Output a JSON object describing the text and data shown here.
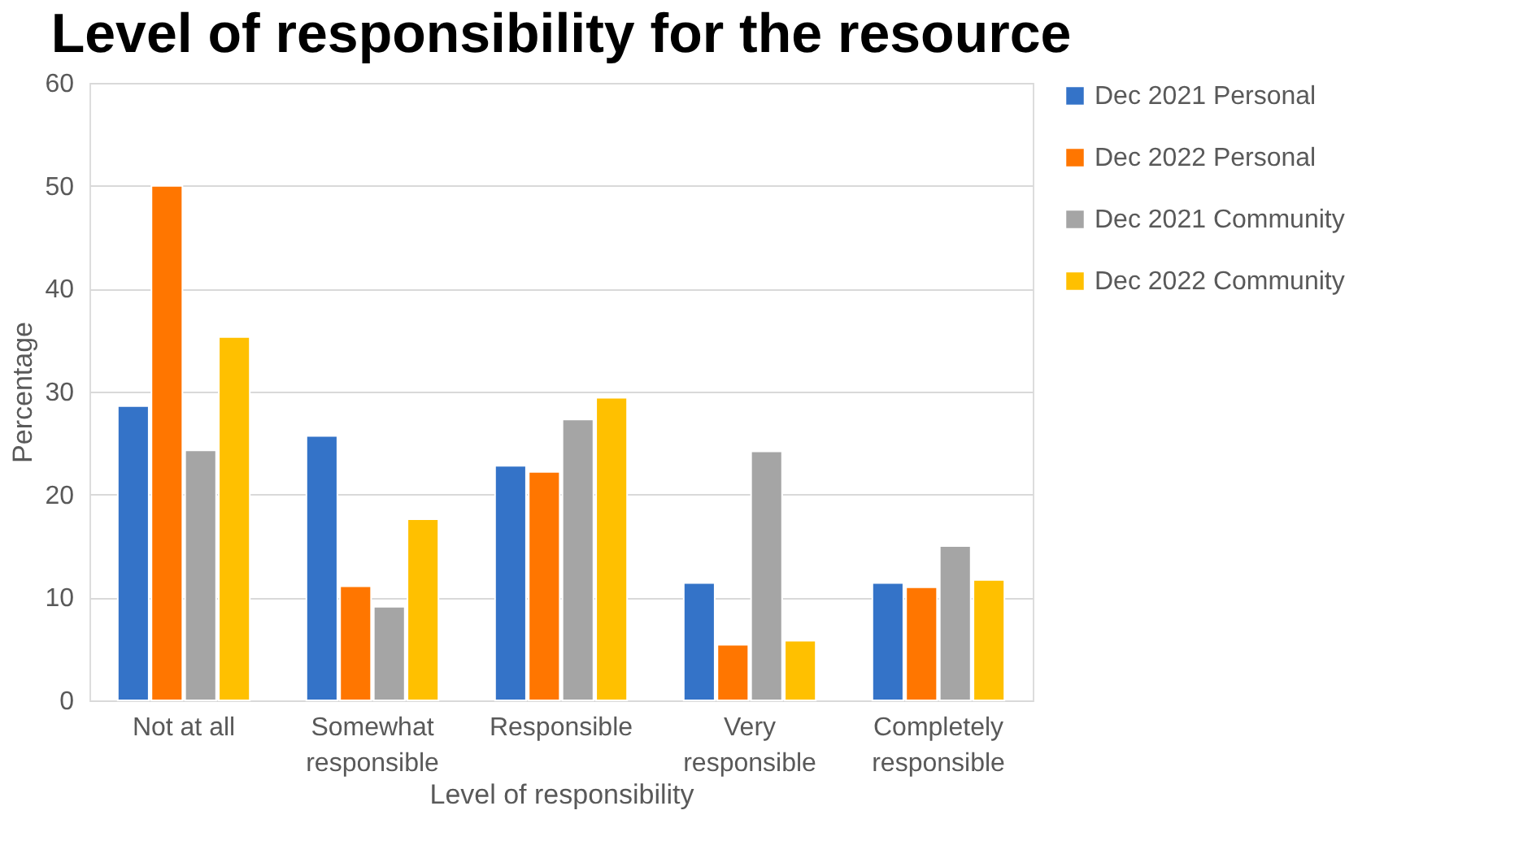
{
  "chart_data": {
    "type": "bar",
    "title": "Level of responsibility for the resource",
    "xlabel": "Level of responsibility",
    "ylabel": "Percentage",
    "categories": [
      "Not at all",
      "Somewhat responsible",
      "Responsible",
      "Very responsible",
      "Completely responsible"
    ],
    "series": [
      {
        "name": "Dec 2021 Personal",
        "color": "#3473c8",
        "values": [
          28.6,
          25.7,
          22.8,
          11.4,
          11.4
        ]
      },
      {
        "name": "Dec 2022 Personal",
        "color": "#ff7600",
        "values": [
          50.0,
          11.1,
          22.2,
          5.4,
          11.0
        ]
      },
      {
        "name": "Dec 2021 Community",
        "color": "#a5a5a5",
        "values": [
          24.3,
          9.1,
          27.3,
          24.2,
          15.0
        ]
      },
      {
        "name": "Dec 2022 Community",
        "color": "#ffc000",
        "values": [
          35.3,
          17.6,
          29.4,
          5.8,
          11.7
        ]
      }
    ],
    "ylim": [
      0,
      60
    ],
    "yticks": [
      0,
      10,
      20,
      30,
      40,
      50,
      60
    ],
    "grid": "y",
    "legend": "right"
  }
}
